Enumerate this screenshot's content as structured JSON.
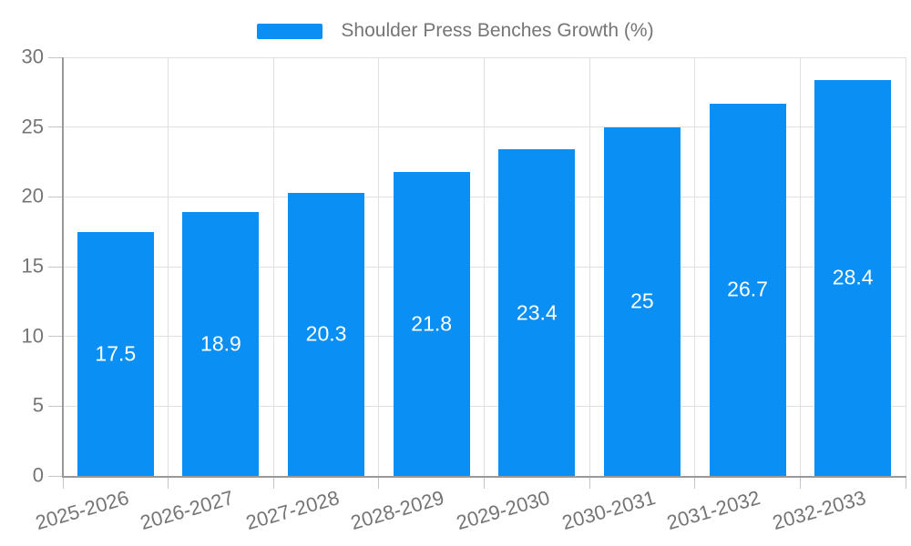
{
  "chart_data": {
    "type": "bar",
    "legend": [
      "Shoulder Press Benches Growth (%)"
    ],
    "legend_position": "top-center",
    "categories": [
      "2025-2026",
      "2026-2027",
      "2027-2028",
      "2028-2029",
      "2029-2030",
      "2030-2031",
      "2031-2032",
      "2032-2033"
    ],
    "values": [
      17.5,
      18.9,
      20.3,
      21.8,
      23.4,
      25,
      26.7,
      28.4
    ],
    "value_labels_visible": true,
    "title": "",
    "xlabel": "",
    "ylabel": "",
    "ylim": [
      0,
      30
    ],
    "yticks": [
      0,
      5,
      10,
      15,
      20,
      25,
      30
    ],
    "grid": true,
    "x_label_rotation_deg": -16,
    "colors": {
      "bar": "#0A8FF4",
      "value_label": "#FFFFFF",
      "axis": "#999999",
      "tick": "#C5C5C5",
      "grid": "#E0E0E0",
      "text": "#757575",
      "background": "#FFFFFF"
    }
  }
}
